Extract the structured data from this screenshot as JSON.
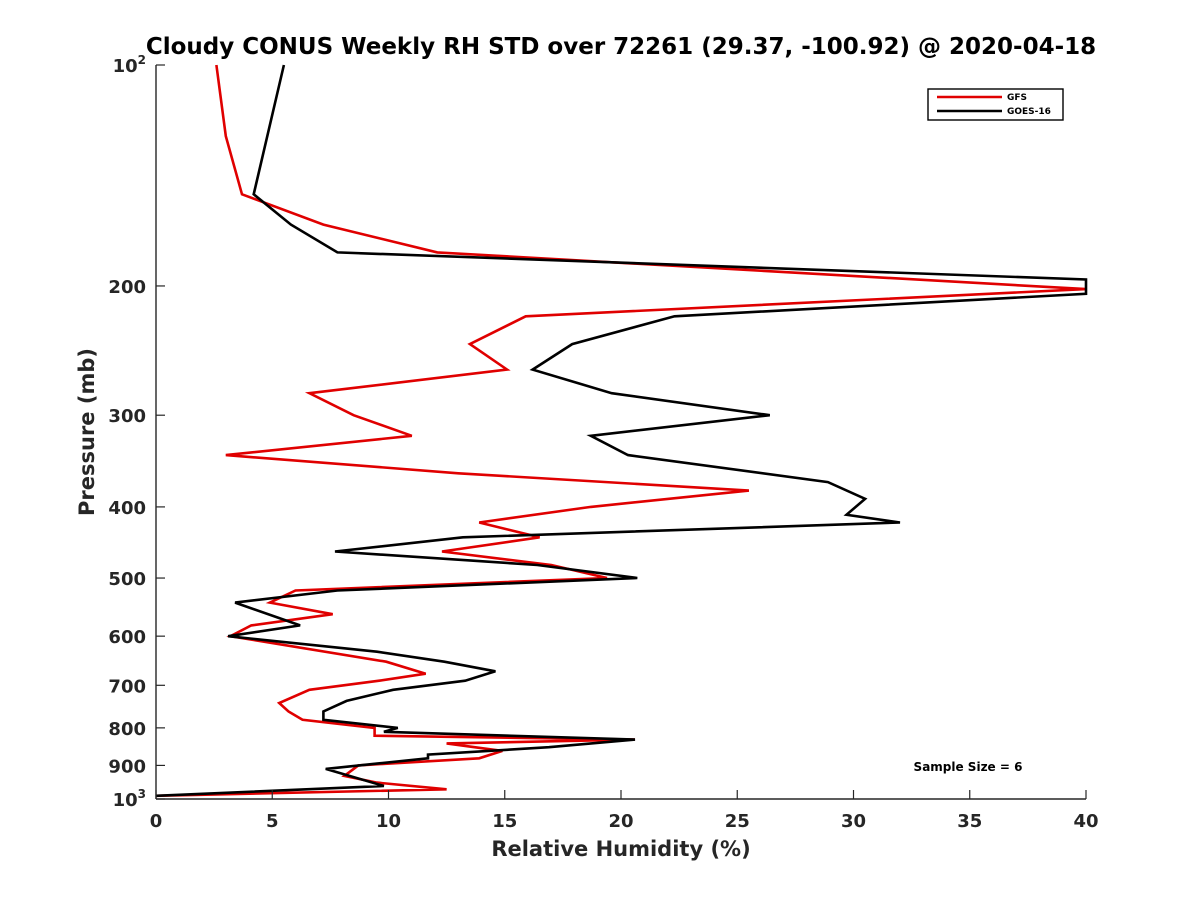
{
  "chart_data": {
    "type": "line",
    "title": "Cloudy CONUS Weekly RH STD over 72261 (29.37, -100.92) @ 2020-04-18",
    "xlabel": "Relative Humidity (%)",
    "ylabel": "Pressure (mb)",
    "xlim": [
      0,
      40
    ],
    "ylim": [
      100,
      1000
    ],
    "yscale": "log",
    "y_reversed": true,
    "grid": false,
    "x_ticks": [
      "0",
      "5",
      "10",
      "15",
      "20",
      "25",
      "30",
      "35",
      "40"
    ],
    "y_ticks": [
      {
        "value": 100,
        "base": "10",
        "exp": "2"
      },
      {
        "value": 200,
        "label": "200"
      },
      {
        "value": 300,
        "label": "300"
      },
      {
        "value": 400,
        "label": "400"
      },
      {
        "value": 500,
        "label": "500"
      },
      {
        "value": 600,
        "label": "600"
      },
      {
        "value": 700,
        "label": "700"
      },
      {
        "value": 800,
        "label": "800"
      },
      {
        "value": 900,
        "label": "900"
      },
      {
        "value": 1000,
        "base": "10",
        "exp": "3"
      }
    ],
    "legend_position": "top-right",
    "annotation": "Sample Size = 6",
    "series": [
      {
        "name": "GFS",
        "color": "#e00000",
        "points": [
          [
            2.6,
            100
          ],
          [
            3.0,
            125
          ],
          [
            3.7,
            150
          ],
          [
            7.2,
            165
          ],
          [
            12.1,
            180
          ],
          [
            40.5,
            202
          ],
          [
            15.9,
            220
          ],
          [
            13.5,
            240
          ],
          [
            15.1,
            260
          ],
          [
            6.6,
            280
          ],
          [
            8.5,
            300
          ],
          [
            11.0,
            320
          ],
          [
            3.0,
            340
          ],
          [
            13.0,
            360
          ],
          [
            25.5,
            380
          ],
          [
            18.7,
            400
          ],
          [
            13.9,
            420
          ],
          [
            16.5,
            440
          ],
          [
            12.3,
            460
          ],
          [
            17.0,
            480
          ],
          [
            19.4,
            500
          ],
          [
            6.0,
            520
          ],
          [
            4.9,
            540
          ],
          [
            7.6,
            560
          ],
          [
            4.1,
            580
          ],
          [
            3.2,
            600
          ],
          [
            9.9,
            650
          ],
          [
            11.6,
            675
          ],
          [
            9.6,
            690
          ],
          [
            6.6,
            710
          ],
          [
            5.3,
            740
          ],
          [
            5.7,
            760
          ],
          [
            6.3,
            780
          ],
          [
            9.4,
            800
          ],
          [
            9.4,
            820
          ],
          [
            20.6,
            830
          ],
          [
            12.5,
            840
          ],
          [
            14.9,
            860
          ],
          [
            13.9,
            880
          ],
          [
            8.7,
            900
          ],
          [
            8.1,
            930
          ],
          [
            9.5,
            950
          ],
          [
            12.5,
            970
          ],
          [
            0,
            990
          ]
        ]
      },
      {
        "name": "GOES-16",
        "color": "#000000",
        "points": [
          [
            5.5,
            100
          ],
          [
            4.2,
            150
          ],
          [
            5.8,
            165
          ],
          [
            7.8,
            180
          ],
          [
            40.5,
            196
          ],
          [
            40.5,
            205
          ],
          [
            22.3,
            220
          ],
          [
            17.9,
            240
          ],
          [
            16.2,
            260
          ],
          [
            19.6,
            280
          ],
          [
            26.4,
            300
          ],
          [
            18.7,
            320
          ],
          [
            20.3,
            340
          ],
          [
            28.9,
            370
          ],
          [
            30.5,
            390
          ],
          [
            29.7,
            410
          ],
          [
            32.0,
            420
          ],
          [
            13.2,
            440
          ],
          [
            7.7,
            460
          ],
          [
            16.4,
            480
          ],
          [
            20.7,
            500
          ],
          [
            7.8,
            520
          ],
          [
            3.4,
            540
          ],
          [
            6.2,
            580
          ],
          [
            3.1,
            600
          ],
          [
            9.5,
            630
          ],
          [
            12.4,
            650
          ],
          [
            14.6,
            670
          ],
          [
            13.3,
            690
          ],
          [
            10.2,
            710
          ],
          [
            8.2,
            735
          ],
          [
            7.2,
            760
          ],
          [
            7.2,
            780
          ],
          [
            10.4,
            800
          ],
          [
            9.8,
            810
          ],
          [
            20.6,
            830
          ],
          [
            16.9,
            850
          ],
          [
            11.7,
            870
          ],
          [
            11.7,
            880
          ],
          [
            9.5,
            895
          ],
          [
            7.3,
            910
          ],
          [
            9.8,
            960
          ],
          [
            0,
            990
          ]
        ]
      }
    ]
  }
}
